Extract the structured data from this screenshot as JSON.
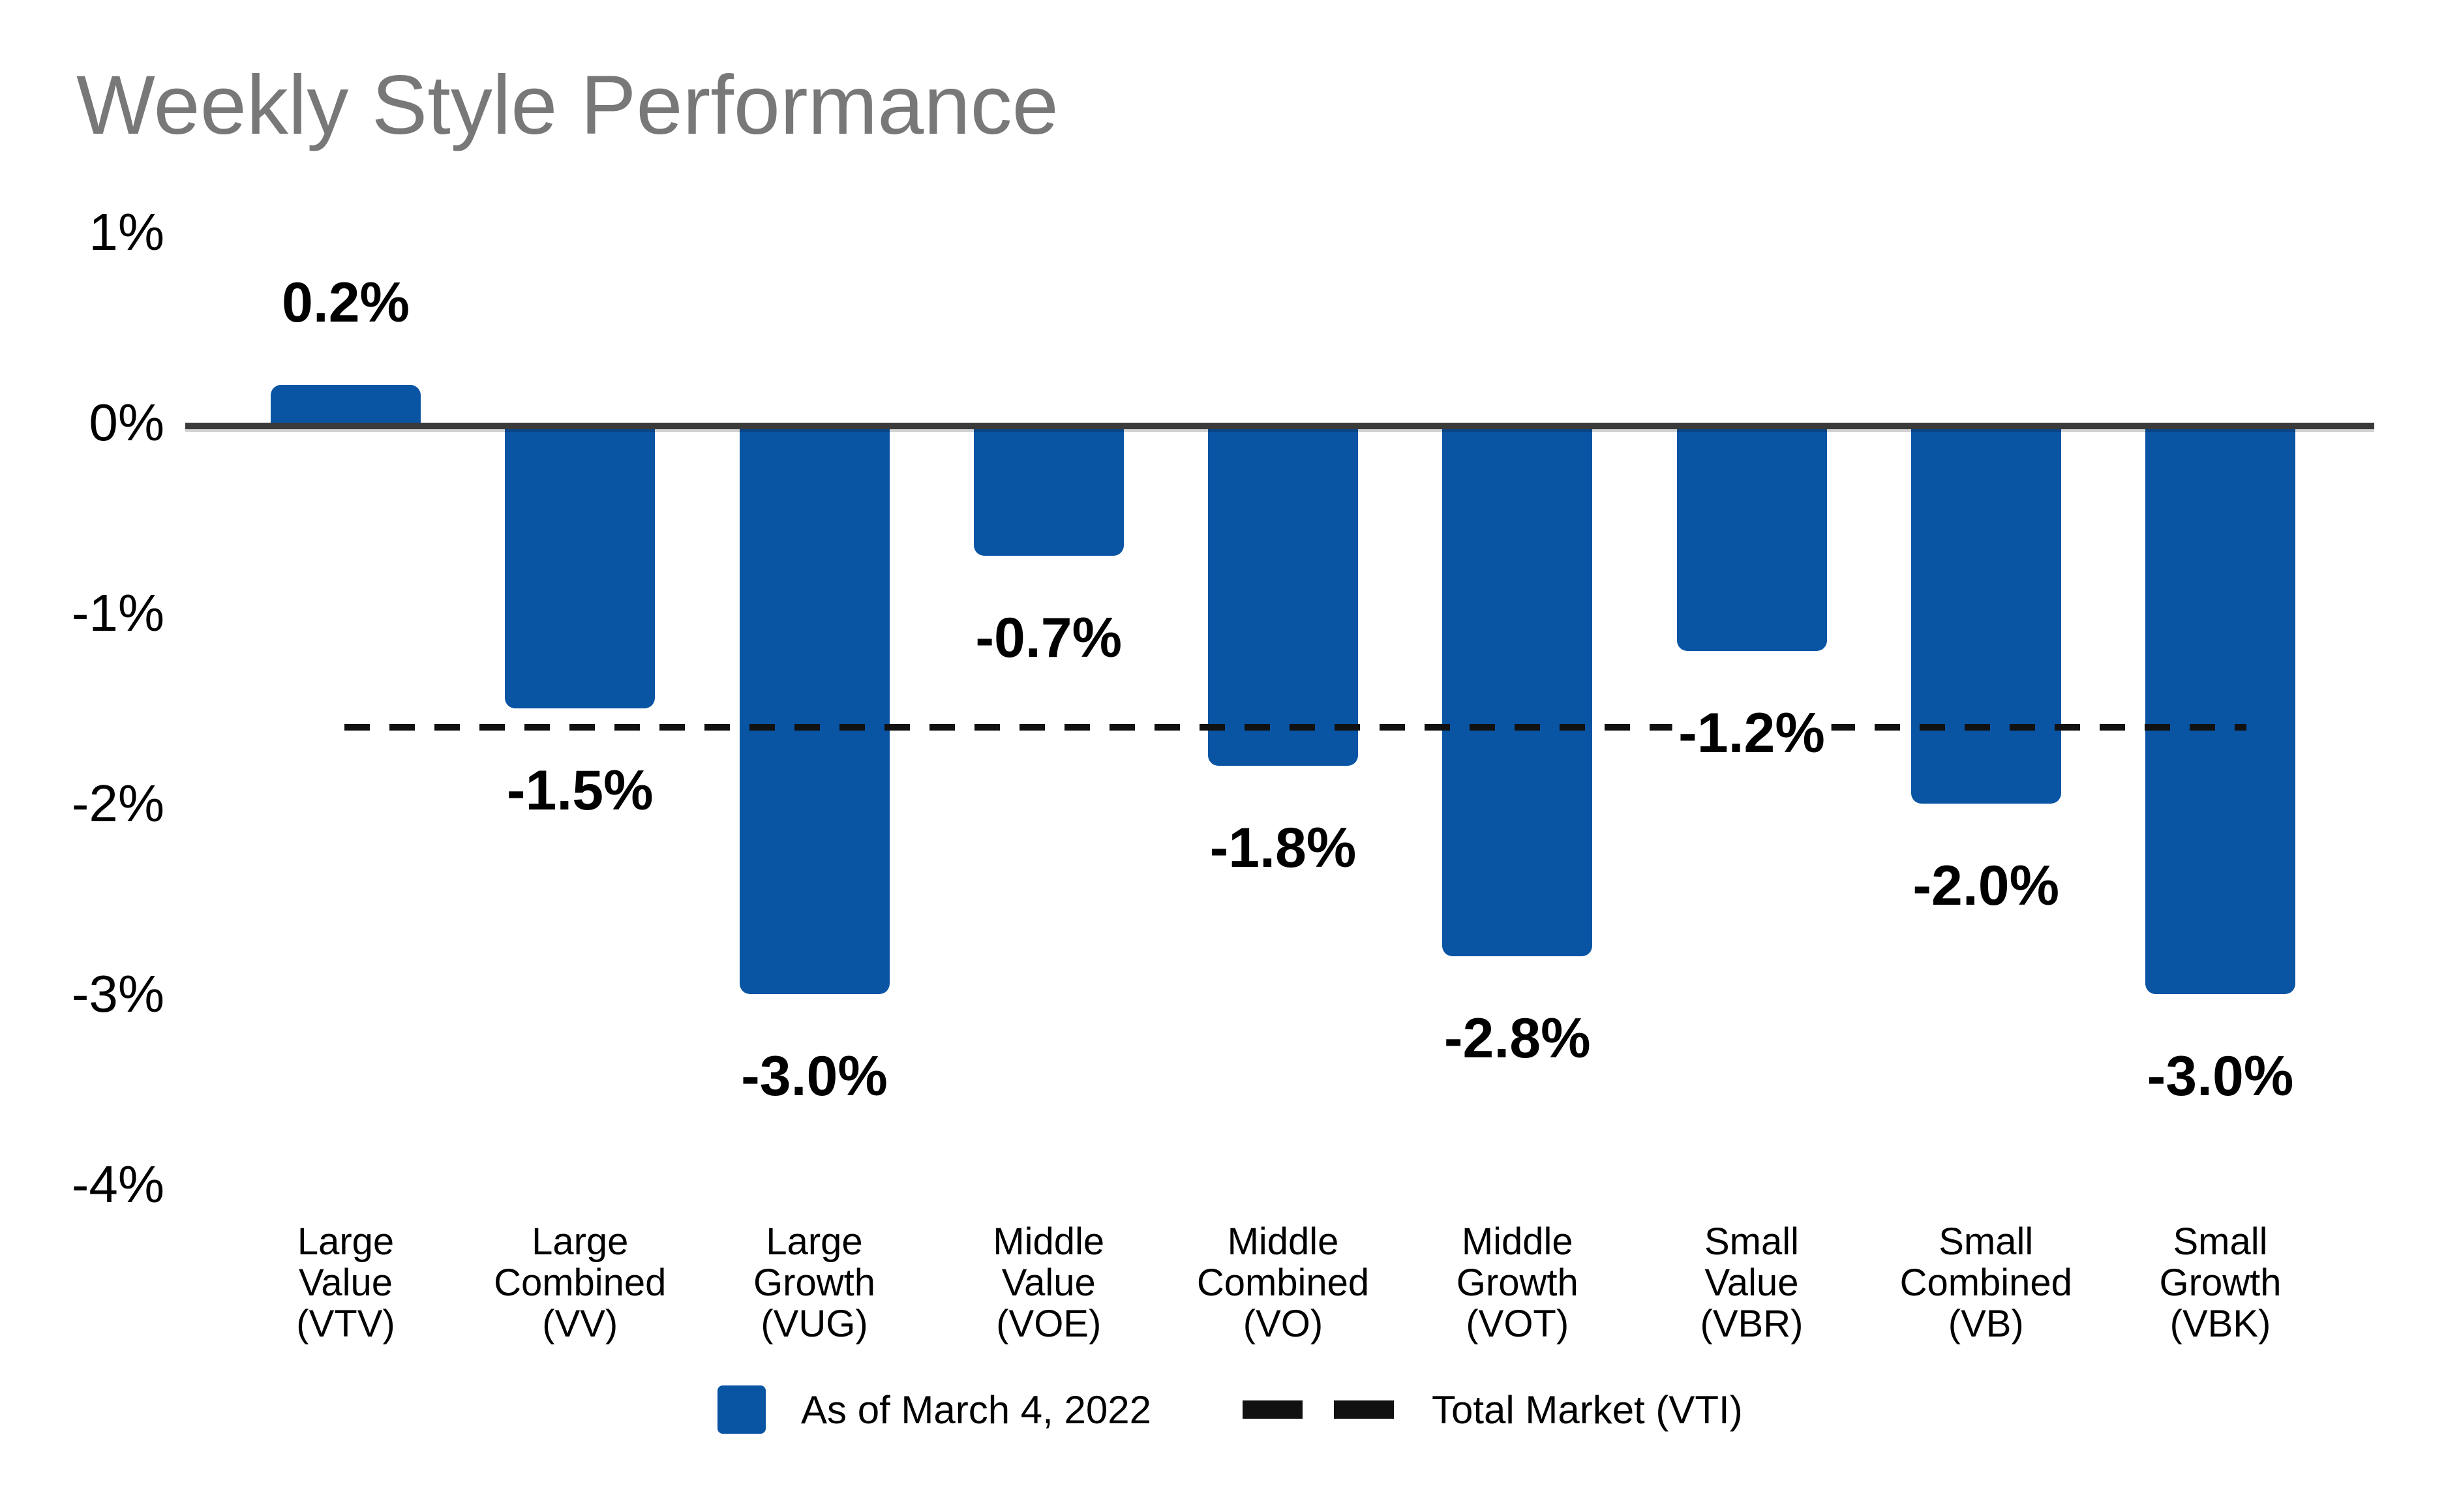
{
  "title": "Weekly Style Performance",
  "colors": {
    "bar": "#0a54a4",
    "title_text": "#787878",
    "axis_line": "#3a3a3a",
    "reference_line": "#111111",
    "label_text": "#000000"
  },
  "chart_data": {
    "type": "bar",
    "title": "Weekly Style Performance",
    "categories": [
      [
        "Large",
        "Value",
        "(VTV)"
      ],
      [
        "Large",
        "Combined",
        "(VV)"
      ],
      [
        "Large",
        "Growth",
        "(VUG)"
      ],
      [
        "Middle",
        "Value",
        "(VOE)"
      ],
      [
        "Middle",
        "Combined",
        "(VO)"
      ],
      [
        "Middle",
        "Growth",
        "(VOT)"
      ],
      [
        "Small",
        "Value",
        "(VBR)"
      ],
      [
        "Small",
        "Combined",
        "(VB)"
      ],
      [
        "Small",
        "Growth",
        "(VBK)"
      ]
    ],
    "values": [
      0.2,
      -1.5,
      -3.0,
      -0.7,
      -1.8,
      -2.8,
      -1.2,
      -2.0,
      -3.0
    ],
    "value_labels": [
      "0.2%",
      "-1.5%",
      "-3.0%",
      "-0.7%",
      "-1.8%",
      "-2.8%",
      "-1.2%",
      "-2.0%",
      "-3.0%"
    ],
    "yticks": [
      {
        "label": "1%",
        "value": 1
      },
      {
        "label": "0%",
        "value": 0
      },
      {
        "label": "-1%",
        "value": -1
      },
      {
        "label": "-2%",
        "value": -2
      },
      {
        "label": "-3%",
        "value": -3
      },
      {
        "label": "-4%",
        "value": -4
      }
    ],
    "ylim": [
      -4,
      1
    ],
    "grid": false,
    "bar_color": "#0a54a4",
    "reference_line": {
      "label": "Total Market (VTI)",
      "value": -1.6,
      "style": "dashed",
      "color": "#111111"
    },
    "legend": {
      "position": "bottom-center",
      "items": [
        {
          "swatch": "bar",
          "label": "As of March 4, 2022"
        },
        {
          "swatch": "dashed-line",
          "label": "Total Market (VTI)"
        }
      ]
    }
  }
}
